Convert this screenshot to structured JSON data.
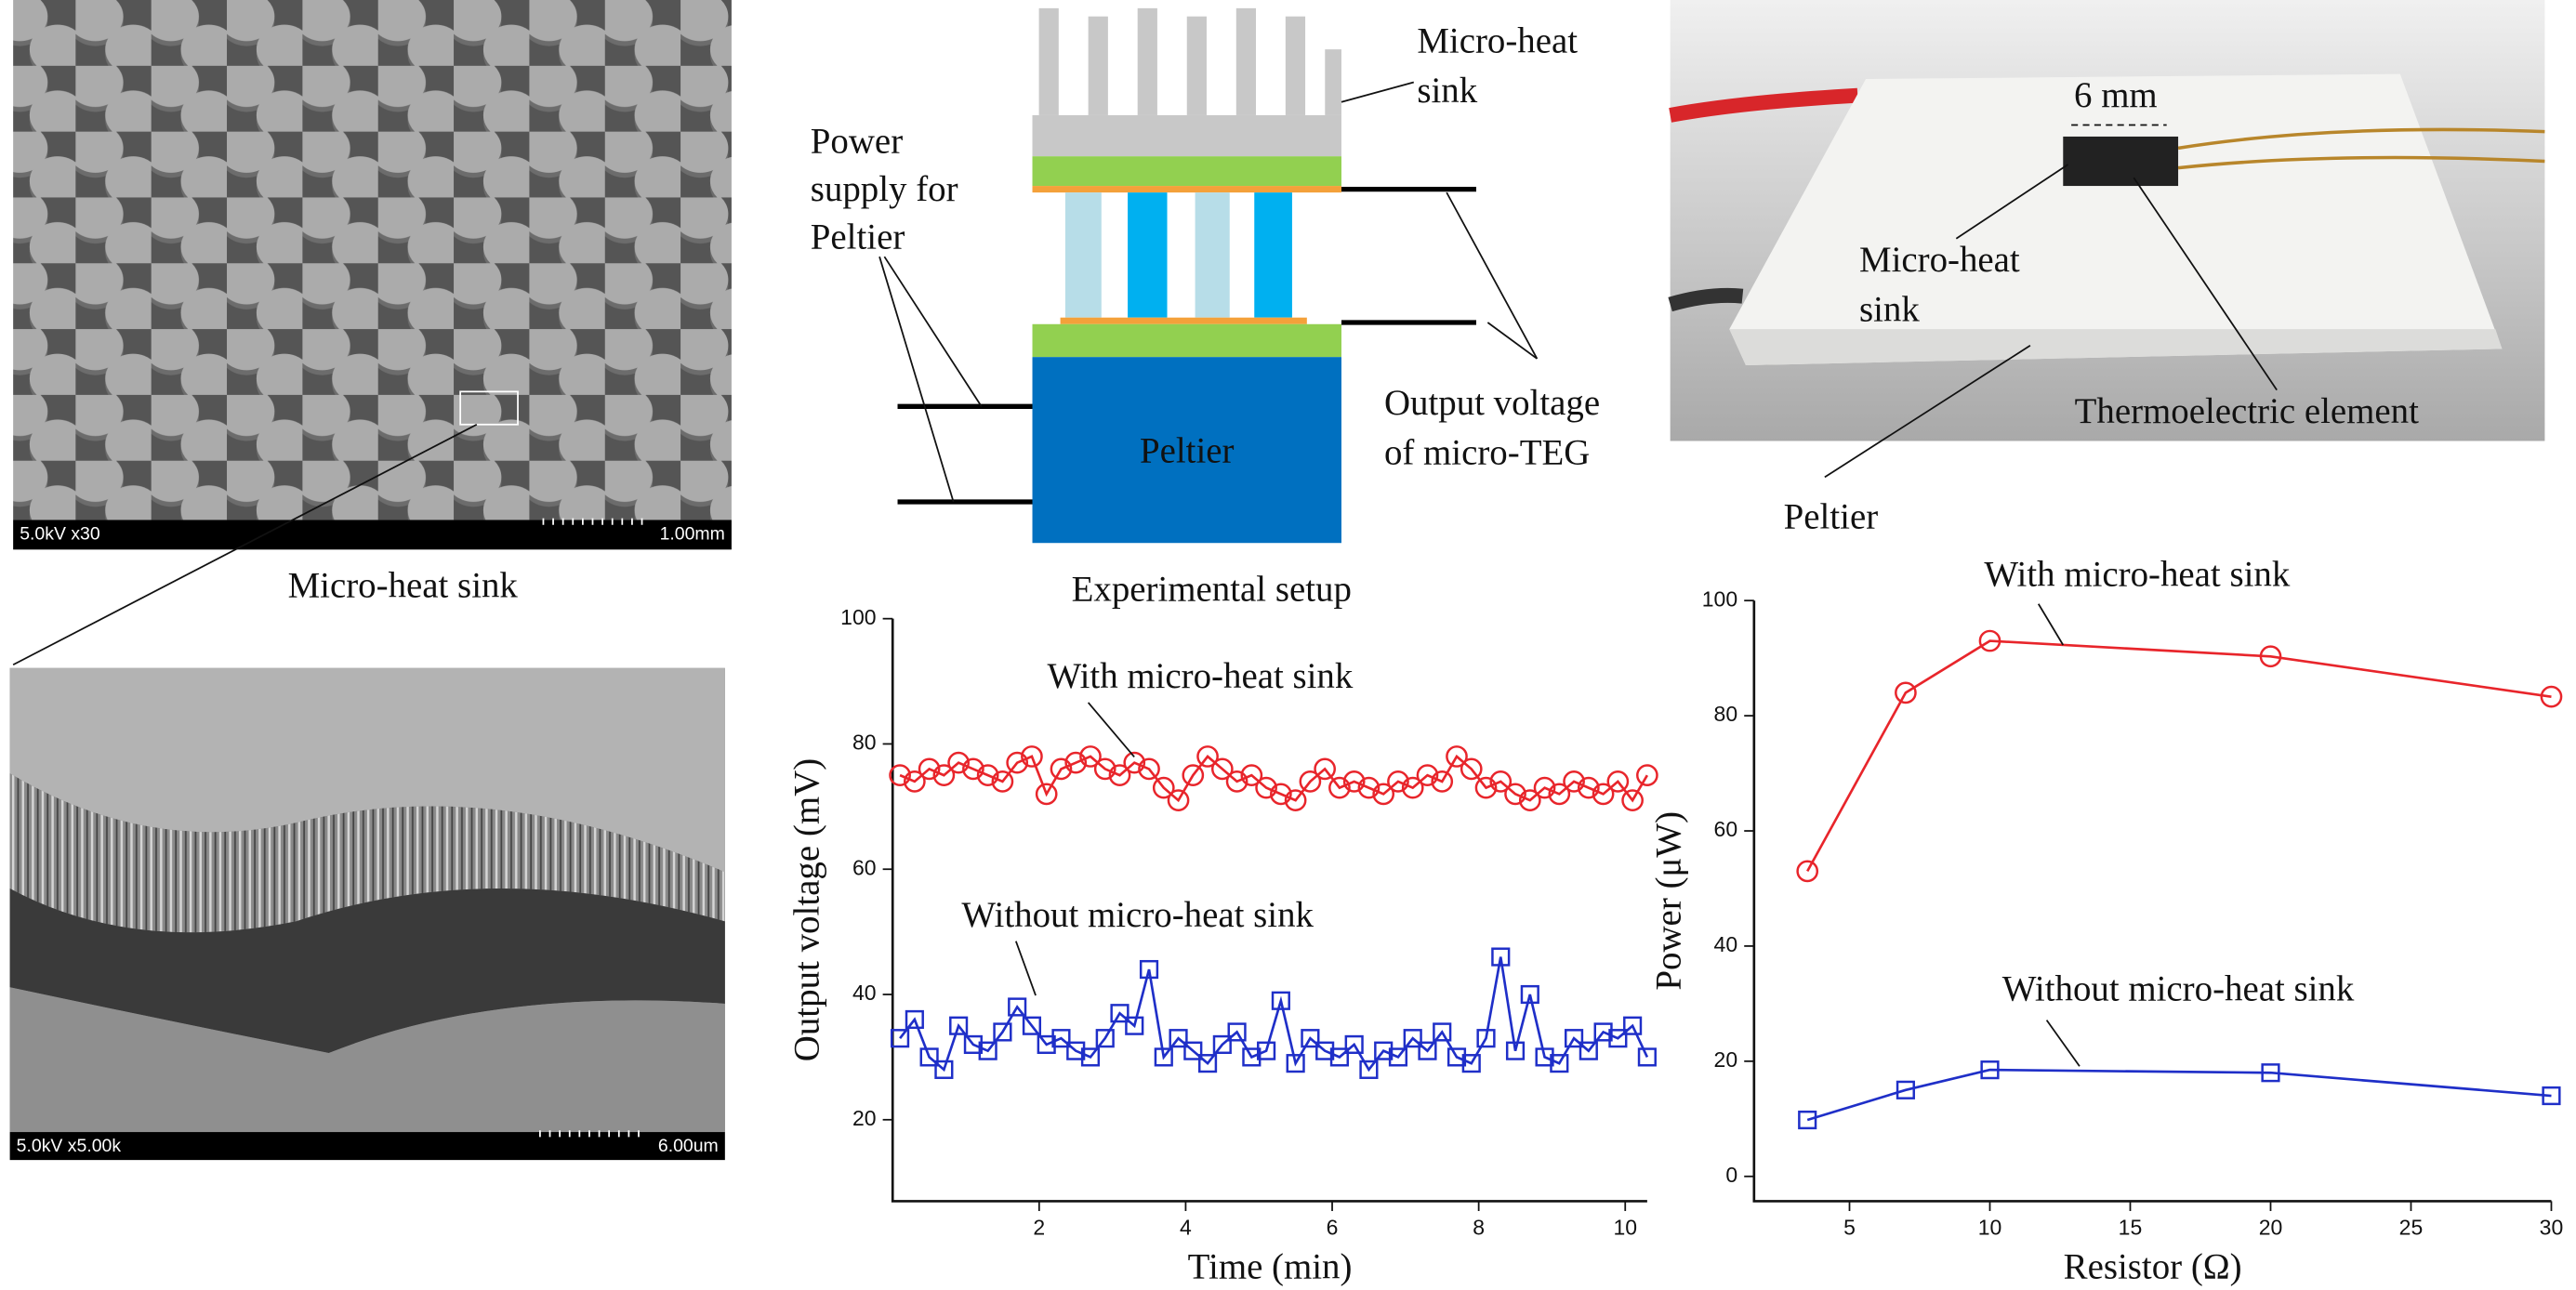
{
  "sem_top": {
    "info": "5.0kV x30",
    "scale": "1.00mm",
    "caption": "Micro-heat sink"
  },
  "sem_bottom": {
    "info": "5.0kV x5.00k",
    "scale": "6.00um"
  },
  "setup": {
    "power_supply": [
      "Power",
      "supply for",
      "Peltier"
    ],
    "heat_sink": [
      "Micro-heat",
      "sink"
    ],
    "peltier": "Peltier",
    "output": [
      "Output voltage",
      "of micro-TEG"
    ],
    "caption": "Experimental setup"
  },
  "photo": {
    "size": "6 mm",
    "heat_sink": [
      "Micro-heat",
      "sink"
    ],
    "element": "Thermoelectric element",
    "peltier": "Peltier"
  },
  "chart_data": [
    {
      "type": "line",
      "xlabel": "Time (min)",
      "ylabel": "Output voltage (mV)",
      "xlim": [
        0,
        10.3
      ],
      "ylim": [
        7,
        100
      ],
      "xticks": [
        2,
        4,
        6,
        8,
        10
      ],
      "yticks": [
        20,
        40,
        60,
        80,
        100
      ],
      "x": [
        0.1,
        0.3,
        0.5,
        0.7,
        0.9,
        1.1,
        1.3,
        1.5,
        1.7,
        1.9,
        2.1,
        2.3,
        2.5,
        2.7,
        2.9,
        3.1,
        3.3,
        3.5,
        3.7,
        3.9,
        4.1,
        4.3,
        4.5,
        4.7,
        4.9,
        5.1,
        5.3,
        5.5,
        5.7,
        5.9,
        6.1,
        6.3,
        6.5,
        6.7,
        6.9,
        7.1,
        7.3,
        7.5,
        7.7,
        7.9,
        8.1,
        8.3,
        8.5,
        8.7,
        8.9,
        9.1,
        9.3,
        9.5,
        9.7,
        9.9,
        10.1,
        10.3
      ],
      "series": [
        {
          "name": "With micro-heat sink",
          "color": "#e8252b",
          "marker": "circle",
          "values": [
            75,
            74,
            76,
            75,
            77,
            76,
            75,
            74,
            77,
            78,
            72,
            76,
            77,
            78,
            76,
            75,
            77,
            76,
            73,
            71,
            75,
            78,
            76,
            74,
            75,
            73,
            72,
            71,
            74,
            76,
            73,
            74,
            73,
            72,
            74,
            73,
            75,
            74,
            78,
            76,
            73,
            74,
            72,
            71,
            73,
            72,
            74,
            73,
            72,
            74,
            71,
            75
          ]
        },
        {
          "name": "Without micro-heat sink",
          "color": "#1f2fc8",
          "marker": "square",
          "values": [
            33,
            36,
            30,
            28,
            35,
            32,
            31,
            34,
            38,
            35,
            32,
            33,
            31,
            30,
            33,
            37,
            35,
            44,
            30,
            33,
            31,
            29,
            32,
            34,
            30,
            31,
            39,
            29,
            33,
            31,
            30,
            32,
            28,
            31,
            30,
            33,
            31,
            34,
            30,
            29,
            33,
            46,
            31,
            40,
            30,
            29,
            33,
            31,
            34,
            33,
            35,
            30
          ]
        }
      ]
    },
    {
      "type": "line",
      "xlabel": "Resistor (Ω)",
      "ylabel": "Power (μW)",
      "xlim": [
        1.6,
        30
      ],
      "ylim": [
        -4.3,
        100
      ],
      "xticks": [
        5,
        10,
        15,
        20,
        25,
        30
      ],
      "yticks": [
        0,
        20,
        40,
        60,
        80,
        100
      ],
      "x": [
        3.5,
        7,
        10,
        20,
        30
      ],
      "series": [
        {
          "name": "With micro-heat sink",
          "color": "#e8252b",
          "marker": "circle",
          "values": [
            53,
            84,
            93,
            90.3,
            83.3
          ]
        },
        {
          "name": "Without micro-heat sink",
          "color": "#1f2fc8",
          "marker": "square",
          "values": [
            9.8,
            15,
            18.5,
            18,
            14
          ]
        }
      ]
    }
  ]
}
